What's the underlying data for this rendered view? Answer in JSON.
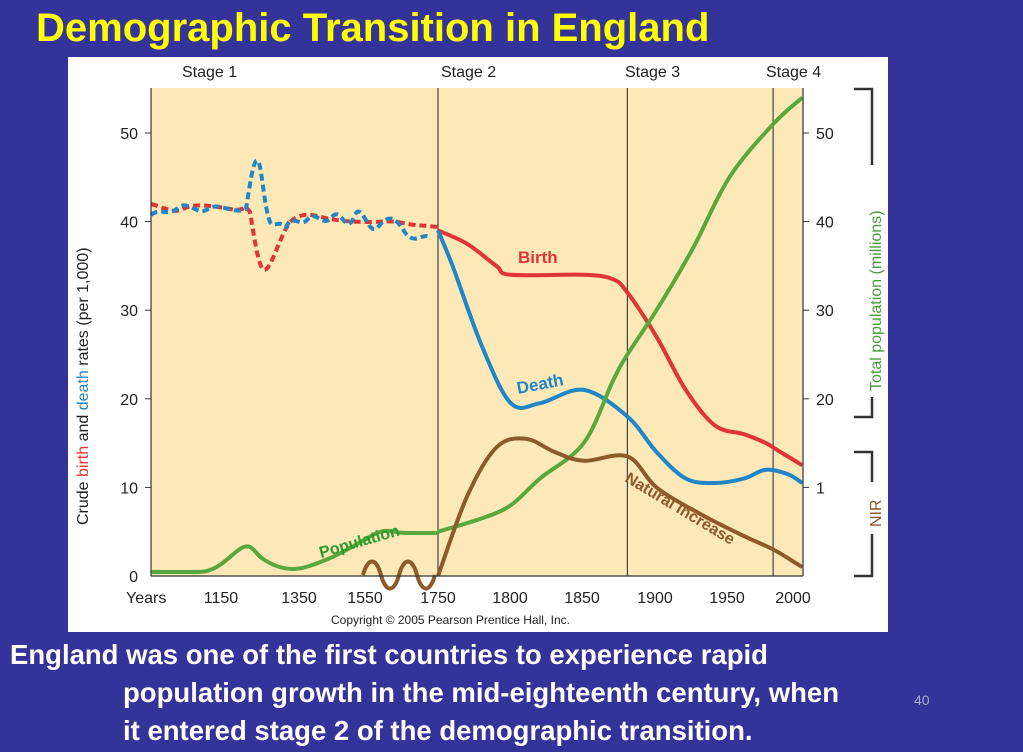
{
  "slide": {
    "title": "Demographic Transition in England",
    "caption_line1": "England was one of the first countries to experience rapid",
    "caption_line2": "population growth in the mid-eighteenth century, when",
    "caption_line3": "it entered stage 2 of the demographic transition.",
    "slide_number": "40"
  },
  "colors": {
    "background": "#333399",
    "title": "#ffff00",
    "plot_area": "#fde8b8",
    "birth": "#e03535",
    "death": "#1f86c8",
    "population": "#58a83f",
    "natural_increase": "#8c5a2b"
  },
  "chart_data": {
    "type": "line",
    "stages": [
      "Stage 1",
      "Stage 2",
      "Stage 3",
      "Stage 4"
    ],
    "stage_boundaries": [
      1750,
      1880,
      1980
    ],
    "x_axis_label": "Years",
    "x_ticks": [
      "1150",
      "1350",
      "1550",
      "1750",
      "1800",
      "1850",
      "1900",
      "1950",
      "2000"
    ],
    "ylabel_left_parts": [
      "Crude ",
      "birth",
      " and ",
      "death",
      " rates (per 1,000)"
    ],
    "ylabel_right": "Total population (millions)",
    "nir_label": "NIR",
    "y_ticks_left": [
      0,
      10,
      20,
      30,
      40,
      50
    ],
    "y_ticks_right": [
      "1",
      "20",
      "30",
      "40",
      "50"
    ],
    "ylim": [
      0,
      55
    ],
    "annotations": {
      "birth": "Birth",
      "death": "Death",
      "population": "Population",
      "natural_increase": "Natural Increase"
    },
    "copyright": "Copyright © 2005 Pearson Prentice Hall, Inc.",
    "series": [
      {
        "name": "Birth",
        "values": [
          [
            1750,
            39
          ],
          [
            1770,
            37.5
          ],
          [
            1790,
            35
          ],
          [
            1800,
            34
          ],
          [
            1850,
            34
          ],
          [
            1870,
            33.5
          ],
          [
            1880,
            32
          ],
          [
            1900,
            27
          ],
          [
            1920,
            21
          ],
          [
            1940,
            17
          ],
          [
            1960,
            16
          ],
          [
            1975,
            15
          ],
          [
            1985,
            14
          ],
          [
            2000,
            12.5
          ]
        ]
      },
      {
        "name": "Death",
        "values": [
          [
            1750,
            39
          ],
          [
            1760,
            35
          ],
          [
            1780,
            26
          ],
          [
            1800,
            19.5
          ],
          [
            1820,
            19.5
          ],
          [
            1850,
            21
          ],
          [
            1880,
            18
          ],
          [
            1900,
            14
          ],
          [
            1920,
            11
          ],
          [
            1940,
            10.5
          ],
          [
            1960,
            11
          ],
          [
            1975,
            12
          ],
          [
            1990,
            11.5
          ],
          [
            2000,
            10.5
          ]
        ]
      },
      {
        "name": "Population",
        "values": [
          [
            1750,
            5
          ],
          [
            1780,
            6.5
          ],
          [
            1800,
            8
          ],
          [
            1820,
            11
          ],
          [
            1850,
            15
          ],
          [
            1870,
            22
          ],
          [
            1880,
            25
          ],
          [
            1900,
            30
          ],
          [
            1925,
            37
          ],
          [
            1950,
            45
          ],
          [
            1980,
            51
          ],
          [
            2000,
            54
          ]
        ]
      },
      {
        "name": "Natural Increase",
        "values": [
          [
            1750,
            0
          ],
          [
            1770,
            9
          ],
          [
            1790,
            14.5
          ],
          [
            1810,
            15.5
          ],
          [
            1830,
            14
          ],
          [
            1850,
            13
          ],
          [
            1880,
            13.5
          ],
          [
            1900,
            10
          ],
          [
            1930,
            7
          ],
          [
            1960,
            4.5
          ],
          [
            1980,
            3
          ],
          [
            2000,
            1
          ]
        ]
      }
    ]
  }
}
